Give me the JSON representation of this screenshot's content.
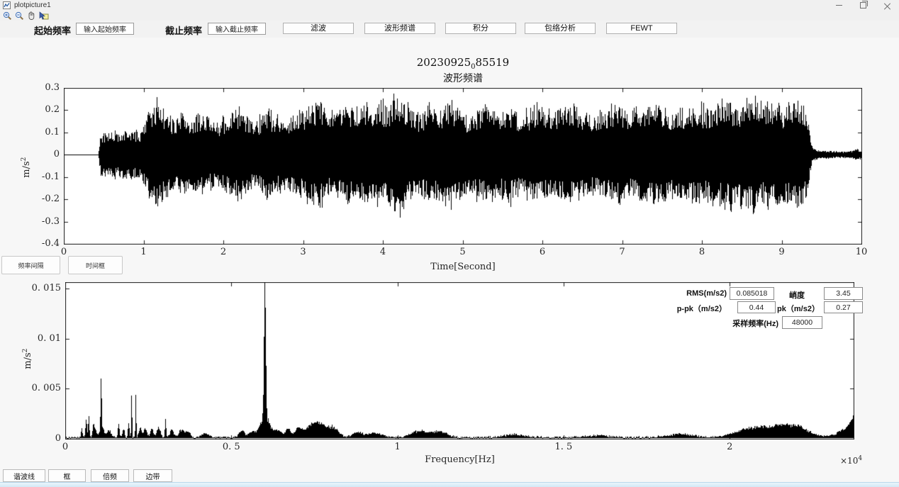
{
  "window": {
    "title": "plotpicture1"
  },
  "toolbar": {
    "icons": [
      "zoom-in",
      "zoom-out",
      "pan",
      "data-cursor"
    ]
  },
  "controls": {
    "start_freq_label": "起始频率",
    "start_freq_input_text": "输入起始频率",
    "cutoff_freq_label": "截止频率",
    "cutoff_freq_input_text": "输入截止频率",
    "buttons": [
      "滤波",
      "波形频谱",
      "积分",
      "包络分析",
      "FEWT"
    ]
  },
  "figure": {
    "title_prefix": "20230925",
    "title_sub": "0",
    "title_suffix": "85519",
    "subtitle": "波形频谱"
  },
  "left_buttons": {
    "freq_interval": "频率间隔",
    "time_box": "时间框"
  },
  "bottom_buttons": {
    "harmonic": "谐波线",
    "box": "框",
    "octave": "倍频",
    "sideband": "边带"
  },
  "stats": {
    "rms_label": "RMS(m/s2)",
    "rms_value": "0.085018",
    "kurtosis_label": "峭度",
    "kurtosis_value": "3.45",
    "ppk_label": "p-pk（m/s2）",
    "ppk_value": "0.44",
    "pk_label": "pk（m/s2）",
    "pk_value": "0.27",
    "fs_label": "采样频率(Hz)",
    "fs_value": "48000"
  },
  "chart_data": [
    {
      "type": "line",
      "name": "time-waveform",
      "title": "20230925_085519",
      "subtitle": "波形频谱",
      "xlabel": "Time[Second]",
      "ylabel": "m/s^2",
      "ylabel_base": "m/s",
      "ylabel_sup": "2",
      "xlim": [
        0,
        10
      ],
      "ylim": [
        -0.4,
        0.3
      ],
      "grid": false,
      "xticks": [
        {
          "v": 0,
          "label": "0"
        },
        {
          "v": 1,
          "label": "1"
        },
        {
          "v": 2,
          "label": "2"
        },
        {
          "v": 3,
          "label": "3"
        },
        {
          "v": 4,
          "label": "4"
        },
        {
          "v": 5,
          "label": "5"
        },
        {
          "v": 6,
          "label": "6"
        },
        {
          "v": 7,
          "label": "7"
        },
        {
          "v": 8,
          "label": "8"
        },
        {
          "v": 9,
          "label": "9"
        },
        {
          "v": 10,
          "label": "10"
        }
      ],
      "yticks": [
        {
          "v": 0.3,
          "label": "0.3"
        },
        {
          "v": 0.2,
          "label": "0.2"
        },
        {
          "v": 0.1,
          "label": "0.1"
        },
        {
          "v": 0,
          "label": "0"
        },
        {
          "v": -0.1,
          "label": "-0.1"
        },
        {
          "v": -0.2,
          "label": "-0.2"
        },
        {
          "v": -0.3,
          "label": "-0.3"
        },
        {
          "v": -0.4,
          "label": "-0.4"
        }
      ],
      "signal_start_s": 0.44,
      "signal_end_s": 9.35,
      "peak_abs": 0.27,
      "envelope": [
        [
          0,
          0
        ],
        [
          0.43,
          0
        ],
        [
          0.46,
          0.1
        ],
        [
          0.6,
          0.1
        ],
        [
          0.8,
          0.11
        ],
        [
          0.95,
          0.1
        ],
        [
          1.02,
          0.16
        ],
        [
          1.08,
          0.22
        ],
        [
          1.18,
          0.24
        ],
        [
          1.28,
          0.19
        ],
        [
          1.38,
          0.16
        ],
        [
          1.48,
          0.2
        ],
        [
          1.58,
          0.14
        ],
        [
          1.68,
          0.19
        ],
        [
          1.78,
          0.17
        ],
        [
          1.9,
          0.14
        ],
        [
          2.0,
          0.16
        ],
        [
          2.1,
          0.2
        ],
        [
          2.2,
          0.21
        ],
        [
          2.32,
          0.16
        ],
        [
          2.42,
          0.15
        ],
        [
          2.52,
          0.21
        ],
        [
          2.62,
          0.18
        ],
        [
          2.75,
          0.16
        ],
        [
          2.9,
          0.18
        ],
        [
          3.0,
          0.2
        ],
        [
          3.12,
          0.23
        ],
        [
          3.22,
          0.24
        ],
        [
          3.32,
          0.18
        ],
        [
          3.45,
          0.2
        ],
        [
          3.55,
          0.23
        ],
        [
          3.65,
          0.2
        ],
        [
          3.75,
          0.23
        ],
        [
          3.85,
          0.21
        ],
        [
          3.95,
          0.24
        ],
        [
          4.05,
          0.22
        ],
        [
          4.15,
          0.26
        ],
        [
          4.22,
          0.27
        ],
        [
          4.32,
          0.21
        ],
        [
          4.45,
          0.18
        ],
        [
          4.58,
          0.22
        ],
        [
          4.7,
          0.2
        ],
        [
          4.82,
          0.23
        ],
        [
          4.95,
          0.21
        ],
        [
          5.05,
          0.18
        ],
        [
          5.2,
          0.2
        ],
        [
          5.35,
          0.22
        ],
        [
          5.45,
          0.19
        ],
        [
          5.6,
          0.21
        ],
        [
          5.72,
          0.18
        ],
        [
          5.85,
          0.2
        ],
        [
          5.95,
          0.22
        ],
        [
          6.1,
          0.19
        ],
        [
          6.25,
          0.21
        ],
        [
          6.4,
          0.22
        ],
        [
          6.55,
          0.19
        ],
        [
          6.65,
          0.17
        ],
        [
          6.8,
          0.2
        ],
        [
          6.95,
          0.22
        ],
        [
          7.1,
          0.19
        ],
        [
          7.25,
          0.21
        ],
        [
          7.4,
          0.23
        ],
        [
          7.55,
          0.2
        ],
        [
          7.65,
          0.18
        ],
        [
          7.8,
          0.21
        ],
        [
          7.95,
          0.23
        ],
        [
          8.05,
          0.2
        ],
        [
          8.2,
          0.22
        ],
        [
          8.35,
          0.24
        ],
        [
          8.45,
          0.21
        ],
        [
          8.55,
          0.24
        ],
        [
          8.65,
          0.26
        ],
        [
          8.78,
          0.22
        ],
        [
          8.9,
          0.24
        ],
        [
          9.0,
          0.21
        ],
        [
          9.1,
          0.23
        ],
        [
          9.2,
          0.24
        ],
        [
          9.28,
          0.21
        ],
        [
          9.33,
          0.15
        ],
        [
          9.38,
          0.035
        ],
        [
          9.45,
          0.02
        ],
        [
          9.6,
          0.016
        ],
        [
          9.75,
          0.015
        ],
        [
          9.88,
          0.018
        ],
        [
          9.94,
          0.028
        ],
        [
          10,
          0.02
        ]
      ]
    },
    {
      "type": "line",
      "name": "frequency-spectrum",
      "xlabel": "Frequency[Hz]",
      "ylabel": "m/s^2",
      "ylabel_base": "m/s",
      "ylabel_sup": "2",
      "x_mult_base": "×10",
      "x_mult_exp": "4",
      "xlim": [
        0,
        23730
      ],
      "ylim": [
        0,
        0.01565
      ],
      "grid": false,
      "xticks": [
        {
          "v": 0,
          "label": "0"
        },
        {
          "v": 5000,
          "label": "0. 5"
        },
        {
          "v": 10000,
          "label": "1"
        },
        {
          "v": 15000,
          "label": "1. 5"
        },
        {
          "v": 20000,
          "label": "2"
        }
      ],
      "yticks": [
        {
          "v": 0,
          "label": "0"
        },
        {
          "v": 0.005,
          "label": "0. 005"
        },
        {
          "v": 0.01,
          "label": "0. 01"
        },
        {
          "v": 0.015,
          "label": "0. 015"
        }
      ],
      "noise_floor": 0.00015,
      "main_peak_hz": 6000,
      "main_peak_amp": 0.0152,
      "peaks": [
        [
          490,
          0.0009,
          20
        ],
        [
          620,
          0.0019,
          20
        ],
        [
          700,
          0.0019,
          20
        ],
        [
          840,
          0.0012,
          25
        ],
        [
          900,
          0.0008,
          40
        ],
        [
          1070,
          0.0056,
          15
        ],
        [
          1100,
          0.001,
          60
        ],
        [
          1300,
          0.0007,
          60
        ],
        [
          1600,
          0.0012,
          25
        ],
        [
          1750,
          0.0008,
          30
        ],
        [
          1900,
          0.0013,
          20
        ],
        [
          1990,
          0.0048,
          12
        ],
        [
          2115,
          0.0041,
          12
        ],
        [
          2250,
          0.0009,
          40
        ],
        [
          2400,
          0.0008,
          50
        ],
        [
          2600,
          0.001,
          40
        ],
        [
          2800,
          0.0009,
          60
        ],
        [
          3010,
          0.0021,
          15
        ],
        [
          3200,
          0.0007,
          60
        ],
        [
          3500,
          0.0008,
          80
        ],
        [
          3700,
          0.0006,
          60
        ],
        [
          4200,
          0.0004,
          100
        ],
        [
          5300,
          0.0006,
          80
        ],
        [
          5600,
          0.0005,
          100
        ],
        [
          6000,
          0.0152,
          25
        ],
        [
          6000,
          0.002,
          150
        ],
        [
          6400,
          0.0007,
          100
        ],
        [
          6700,
          0.0009,
          80
        ],
        [
          7000,
          0.0008,
          100
        ],
        [
          7400,
          0.001,
          200
        ],
        [
          7700,
          0.0011,
          200
        ],
        [
          8100,
          0.0008,
          150
        ],
        [
          8800,
          0.0005,
          150
        ],
        [
          9300,
          0.0004,
          200
        ],
        [
          10700,
          0.0006,
          300
        ],
        [
          11300,
          0.0005,
          200
        ],
        [
          13500,
          0.0003,
          300
        ],
        [
          16000,
          0.0002,
          300
        ],
        [
          18500,
          0.0003,
          400
        ],
        [
          20500,
          0.0006,
          400
        ],
        [
          21300,
          0.0009,
          500
        ],
        [
          22000,
          0.0008,
          400
        ],
        [
          23600,
          0.0009,
          300
        ],
        [
          23730,
          0.0012,
          100
        ]
      ]
    }
  ]
}
